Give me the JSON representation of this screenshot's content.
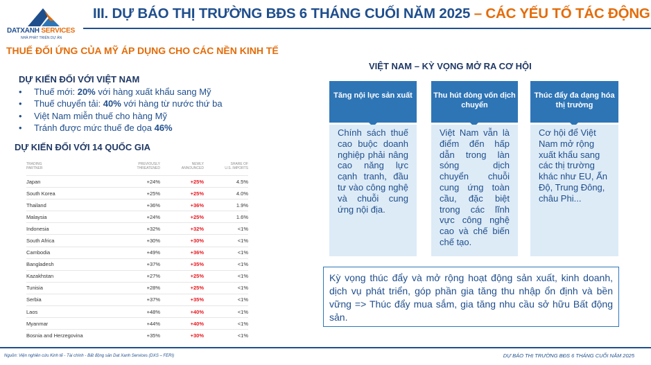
{
  "logo": {
    "name_primary": "DATXANH",
    "name_accent": " SERVICES",
    "tagline": "NHÀ PHÁT TRIỂN DỰ ÁN"
  },
  "title": {
    "main": "III. DỰ BÁO THỊ TRƯỜNG BĐS 6 THÁNG CUỐI NĂM 2025",
    "accent": " – CÁC YẾU TỐ TÁC ĐỘNG"
  },
  "section_heading": "THUẾ ĐỐI ỨNG CỦA MỸ ÁP DỤNG CHO CÁC NỀN KINH TẾ",
  "vietnam": {
    "heading": "DỰ KIẾN ĐỐI VỚI VIỆT NAM",
    "items": [
      {
        "pre": "Thuế mới: ",
        "bold": "20%",
        "post": " với hàng xuất khẩu sang Mỹ"
      },
      {
        "pre": "Thuế chuyển tải: ",
        "bold": "40%",
        "post": " với hàng từ nước thứ ba"
      },
      {
        "pre": "Việt Nam miễn thuế cho hàng Mỹ",
        "bold": "",
        "post": ""
      },
      {
        "pre": "Tránh được mức thuế đe dọa ",
        "bold": "46%",
        "post": ""
      }
    ]
  },
  "countries14": {
    "heading": "DỰ KIẾN ĐỐI VỚI 14 QUỐC GIA",
    "columns": [
      {
        "line1": "TRADING",
        "line2": "PARTNER"
      },
      {
        "line1": "PREVIOUSLY",
        "line2": "THREATENED"
      },
      {
        "line1": "NEWLY",
        "line2": "ANNOUNCED"
      },
      {
        "line1": "SHARE OF",
        "line2": "U.S. IMPORTS"
      }
    ],
    "rows": [
      [
        "Japan",
        "+24%",
        "+25%",
        "4.5%"
      ],
      [
        "South Korea",
        "+25%",
        "+25%",
        "4.0%"
      ],
      [
        "Thailand",
        "+36%",
        "+36%",
        "1.9%"
      ],
      [
        "Malaysia",
        "+24%",
        "+25%",
        "1.6%"
      ],
      [
        "Indonesia",
        "+32%",
        "+32%",
        "<1%"
      ],
      [
        "South Africa",
        "+30%",
        "+30%",
        "<1%"
      ],
      [
        "Cambodia",
        "+49%",
        "+36%",
        "<1%"
      ],
      [
        "Bangladesh",
        "+37%",
        "+35%",
        "<1%"
      ],
      [
        "Kazakhstan",
        "+27%",
        "+25%",
        "<1%"
      ],
      [
        "Tunisia",
        "+28%",
        "+25%",
        "<1%"
      ],
      [
        "Serbia",
        "+37%",
        "+35%",
        "<1%"
      ],
      [
        "Laos",
        "+48%",
        "+40%",
        "<1%"
      ],
      [
        "Myanmar",
        "+44%",
        "+40%",
        "<1%"
      ],
      [
        "Bosnia and Herzegovina",
        "+35%",
        "+30%",
        "<1%"
      ]
    ],
    "new_rate_color": "#e8131b"
  },
  "vn_expectation": {
    "heading": "VIỆT NAM – KỲ VỌNG MỞ RA CƠ HỘI",
    "columns": [
      {
        "title": "Tăng nội lực sản xuất",
        "body": "Chính sách thuế cao buộc doanh nghiệp phải nâng cao năng lực cạnh tranh, đầu tư vào công nghệ và chuỗi cung ứng nội địa."
      },
      {
        "title": "Thu hút dòng vốn dịch chuyển",
        "body": "Việt Nam vẫn là điểm đến hấp dẫn trong làn sóng dịch chuyển chuỗi cung ứng toàn cầu, đặc biệt trong các lĩnh vực công nghệ cao và chế biến chế tạo."
      },
      {
        "title": "Thúc đẩy đa dạng hóa thị trường",
        "body": "Cơ hội để Việt Nam mở rộng xuất khẩu sang các thị trường khác như EU, Ấn Độ, Trung Đông, châu Phi..."
      }
    ],
    "summary": "Kỳ vọng thúc đẩy và mở rộng hoạt động sản xuất, kinh doanh, dịch vụ phát triển, góp phần gia tăng thu nhập ổn định và bền vững => Thúc đẩy mua sắm, gia tăng nhu cầu sở hữu Bất động sản."
  },
  "footer": {
    "source": "Nguồn: Viện nghiên cứu Kinh tế - Tài chính - Bất động sản Dat Xanh Services (DXS – FERI)",
    "title": "DỰ BÁO THỊ TRƯỜNG BĐS 6 THÁNG CUỐI NĂM 2025"
  },
  "colors": {
    "brand_blue": "#1f4e8c",
    "accent_orange": "#e36c0a",
    "header_blue": "#2e75b6",
    "panel_light_blue": "#ddebf7"
  }
}
